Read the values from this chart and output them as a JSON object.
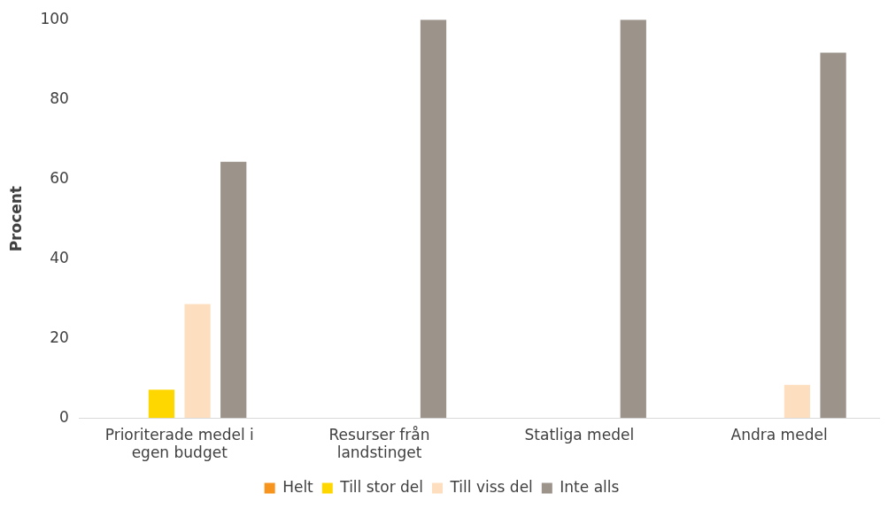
{
  "chart_data": {
    "type": "bar",
    "ylabel": "Procent",
    "categories": [
      "Prioriterade medel i egen budget",
      "Resurser från landstinget",
      "Statliga medel",
      "Andra medel"
    ],
    "series": [
      {
        "name": "Helt",
        "color": "#f7941d",
        "values": [
          0,
          0,
          0,
          0
        ]
      },
      {
        "name": "Till stor del",
        "color": "#ffd700",
        "values": [
          7.1,
          0,
          0,
          0
        ]
      },
      {
        "name": "Till viss del",
        "color": "#fddfbf",
        "values": [
          28.6,
          0,
          0,
          8.3
        ]
      },
      {
        "name": "Inte alls",
        "color": "#9c938b",
        "values": [
          64.3,
          100,
          100,
          91.7
        ]
      }
    ],
    "ylim": [
      0,
      100
    ],
    "yticks": [
      0,
      20,
      40,
      60,
      80,
      100
    ],
    "grid": false,
    "legend": "bottom"
  }
}
